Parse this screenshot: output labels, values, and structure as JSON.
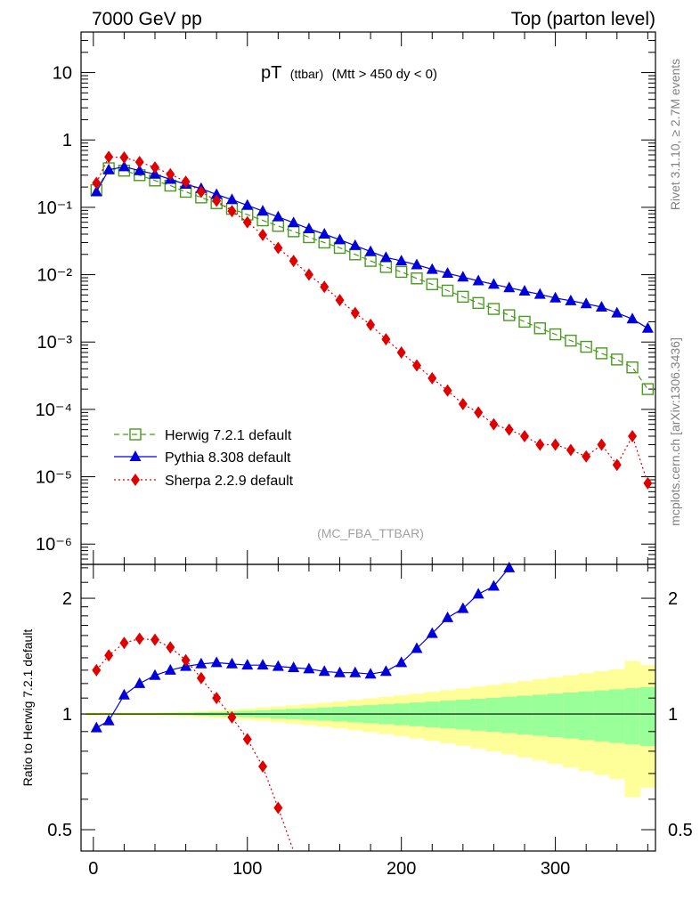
{
  "header": {
    "left": "7000 GeV pp",
    "right": "Top (parton level)"
  },
  "plot_title": {
    "main": "pT",
    "sub": "(ttbar)",
    "cut": "(Mtt > 450 dy < 0)"
  },
  "side_labels": {
    "rivet": "Rivet 3.1.10, ≥ 2.7M events",
    "mcplots": "mcplots.cern.ch [arXiv:1306.3436]"
  },
  "watermark": "(MC_FBA_TTBAR)",
  "ratio_ylabel": "Ratio to Herwig 7.2.1 default",
  "colors": {
    "herwig": "#4a9a1f",
    "pythia": "#0000dd",
    "sherpa": "#e00000",
    "band_outer": "#ffff99",
    "band_inner": "#99ff99"
  },
  "chart_data": [
    {
      "type": "line",
      "title": "pT (ttbar) (Mtt > 450 dy < 0)",
      "yscale": "log",
      "xlim": [
        -8,
        365
      ],
      "ylim": [
        5e-07,
        40
      ],
      "y_ticks": [
        "10",
        "1",
        "10⁻¹",
        "10⁻²",
        "10⁻³",
        "10⁻⁴",
        "10⁻⁵",
        "10⁻⁶"
      ],
      "legend_position": "bottom-left",
      "series": [
        {
          "name": "Herwig 7.2.1 default",
          "marker": "open-square",
          "line": "dashed",
          "x": [
            2,
            10,
            20,
            30,
            40,
            50,
            60,
            70,
            80,
            90,
            100,
            110,
            120,
            130,
            140,
            150,
            160,
            170,
            180,
            190,
            200,
            210,
            220,
            230,
            240,
            250,
            260,
            270,
            280,
            290,
            300,
            310,
            320,
            330,
            340,
            350,
            360
          ],
          "y": [
            0.18,
            0.38,
            0.35,
            0.3,
            0.25,
            0.21,
            0.17,
            0.14,
            0.115,
            0.095,
            0.078,
            0.064,
            0.053,
            0.044,
            0.036,
            0.03,
            0.025,
            0.02,
            0.016,
            0.013,
            0.011,
            0.0088,
            0.0072,
            0.0058,
            0.0047,
            0.0038,
            0.0031,
            0.0025,
            0.002,
            0.0016,
            0.0013,
            0.00105,
            0.00085,
            0.00068,
            0.00055,
            0.00042,
            0.0002
          ]
        },
        {
          "name": "Pythia 8.308 default",
          "marker": "filled-triangle",
          "line": "solid",
          "x": [
            2,
            10,
            20,
            30,
            40,
            50,
            60,
            70,
            80,
            90,
            100,
            110,
            120,
            130,
            140,
            150,
            160,
            170,
            180,
            190,
            200,
            210,
            220,
            230,
            240,
            250,
            260,
            270,
            280,
            290,
            300,
            310,
            320,
            330,
            340,
            350,
            360
          ],
          "y": [
            0.17,
            0.36,
            0.4,
            0.35,
            0.31,
            0.26,
            0.22,
            0.19,
            0.155,
            0.13,
            0.107,
            0.088,
            0.072,
            0.059,
            0.048,
            0.04,
            0.033,
            0.027,
            0.022,
            0.018,
            0.016,
            0.014,
            0.012,
            0.0105,
            0.0092,
            0.0081,
            0.0072,
            0.0064,
            0.0057,
            0.0051,
            0.0045,
            0.0041,
            0.0037,
            0.0033,
            0.0027,
            0.0022,
            0.0016
          ]
        },
        {
          "name": "Sherpa 2.2.9 default",
          "marker": "filled-diamond",
          "line": "dotted",
          "x": [
            2,
            10,
            20,
            30,
            40,
            50,
            60,
            70,
            80,
            90,
            100,
            110,
            120,
            130,
            140,
            150,
            160,
            170,
            180,
            190,
            200,
            210,
            220,
            230,
            240,
            250,
            260,
            270,
            280,
            290,
            300,
            310,
            320,
            330,
            340,
            350,
            360
          ],
          "y": [
            0.23,
            0.56,
            0.55,
            0.47,
            0.39,
            0.31,
            0.24,
            0.17,
            0.125,
            0.088,
            0.06,
            0.039,
            0.025,
            0.016,
            0.01,
            0.0066,
            0.0042,
            0.0027,
            0.0018,
            0.0011,
            0.0007,
            0.00045,
            0.00029,
            0.00019,
            0.00012,
            9e-05,
            6e-05,
            5e-05,
            4e-05,
            3e-05,
            3e-05,
            2.5e-05,
            2e-05,
            3e-05,
            1.5e-05,
            4e-05,
            8e-06
          ]
        }
      ]
    },
    {
      "type": "line",
      "ylabel": "Ratio to Herwig 7.2.1 default",
      "yscale": "log",
      "xlim": [
        -8,
        365
      ],
      "ylim": [
        0.44,
        2.45
      ],
      "x_ticks": [
        0,
        100,
        200,
        300
      ],
      "y_ticks": [
        0.5,
        1,
        2
      ],
      "reference_line": 1,
      "series": [
        {
          "name": "Pythia 8.308 default",
          "x": [
            2,
            10,
            20,
            30,
            40,
            50,
            60,
            70,
            80,
            90,
            100,
            110,
            120,
            130,
            140,
            150,
            160,
            170,
            180,
            190,
            200,
            210,
            220,
            230,
            240,
            250,
            260,
            270
          ],
          "y": [
            0.92,
            0.96,
            1.12,
            1.2,
            1.26,
            1.3,
            1.33,
            1.35,
            1.36,
            1.35,
            1.34,
            1.34,
            1.33,
            1.32,
            1.31,
            1.29,
            1.28,
            1.28,
            1.27,
            1.29,
            1.36,
            1.48,
            1.62,
            1.78,
            1.88,
            2.05,
            2.15,
            2.4
          ]
        },
        {
          "name": "Sherpa 2.2.9 default",
          "x": [
            2,
            10,
            20,
            30,
            40,
            50,
            60,
            70,
            80,
            90,
            100,
            110,
            120,
            130
          ],
          "y": [
            1.3,
            1.42,
            1.53,
            1.57,
            1.56,
            1.49,
            1.38,
            1.24,
            1.1,
            0.98,
            0.86,
            0.73,
            0.57,
            0.44
          ]
        }
      ]
    }
  ]
}
